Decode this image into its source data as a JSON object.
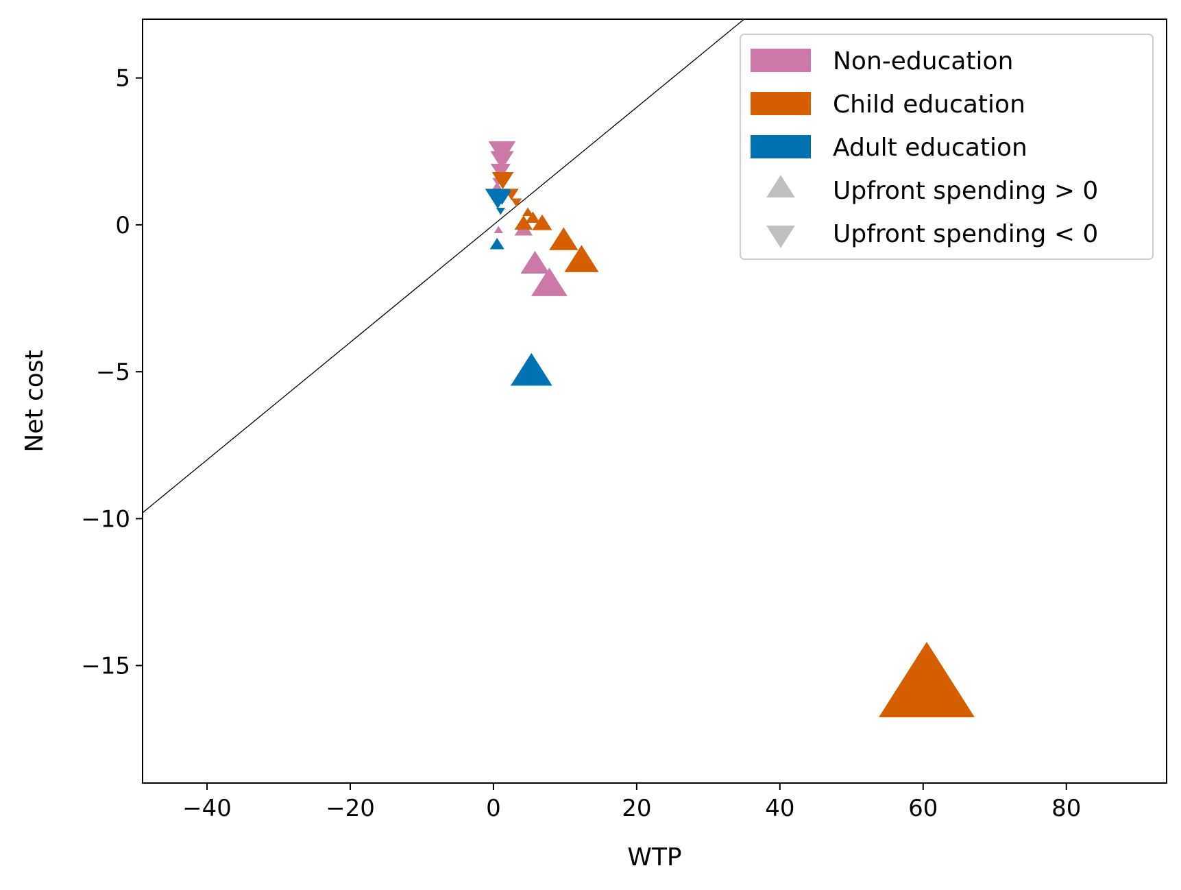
{
  "chart_data": {
    "type": "scatter",
    "xlabel": "WTP",
    "ylabel": "Net cost",
    "xlim": [
      -49,
      94
    ],
    "ylim": [
      -19,
      7
    ],
    "x_ticks": [
      -40,
      -20,
      0,
      20,
      40,
      60,
      80
    ],
    "y_ticks": [
      5,
      0,
      -5,
      -10,
      -15
    ],
    "grid": false,
    "legend_placement": "top-right",
    "reference_line": {
      "slope": 0.2,
      "intercept": 0,
      "color": "#000000"
    },
    "legend": [
      {
        "label": "Non-education",
        "color": "#CC79A7",
        "marker": "patch"
      },
      {
        "label": "Child education",
        "color": "#D55E00",
        "marker": "patch"
      },
      {
        "label": "Adult education",
        "color": "#0072B2",
        "marker": "patch"
      },
      {
        "label": "Upfront spending > 0",
        "color": "#BFBFBF",
        "marker": "triangle-up"
      },
      {
        "label": "Upfront spending < 0",
        "color": "#BFBFBF",
        "marker": "triangle-down"
      }
    ],
    "series": [
      {
        "name": "Non-education",
        "color": "#CC79A7",
        "points": [
          {
            "x": 1.2,
            "y": 2.6,
            "marker": "down",
            "size": 1.5
          },
          {
            "x": 1.2,
            "y": 2.3,
            "marker": "down",
            "size": 1.3
          },
          {
            "x": 1.0,
            "y": 1.9,
            "marker": "down",
            "size": 1.1
          },
          {
            "x": 0.6,
            "y": 1.5,
            "marker": "down",
            "size": 0.6
          },
          {
            "x": 0.5,
            "y": 1.3,
            "marker": "up",
            "size": 0.5
          },
          {
            "x": 0.7,
            "y": -0.2,
            "marker": "up",
            "size": 0.5
          },
          {
            "x": 4.2,
            "y": -0.2,
            "marker": "up",
            "size": 1.0
          },
          {
            "x": 5.8,
            "y": -1.4,
            "marker": "up",
            "size": 1.6
          },
          {
            "x": 7.8,
            "y": -2.1,
            "marker": "up",
            "size": 2.0
          }
        ]
      },
      {
        "name": "Child education",
        "color": "#D55E00",
        "points": [
          {
            "x": 1.3,
            "y": 1.6,
            "marker": "down",
            "size": 1.2
          },
          {
            "x": 2.5,
            "y": 1.1,
            "marker": "down",
            "size": 0.8
          },
          {
            "x": 3.2,
            "y": 0.8,
            "marker": "down",
            "size": 0.6
          },
          {
            "x": 4.8,
            "y": 0.4,
            "marker": "up",
            "size": 0.6
          },
          {
            "x": 4.2,
            "y": 0.0,
            "marker": "up",
            "size": 1.0
          },
          {
            "x": 5.5,
            "y": 0.2,
            "marker": "up",
            "size": 0.8
          },
          {
            "x": 6.8,
            "y": 0.0,
            "marker": "up",
            "size": 1.1
          },
          {
            "x": 9.8,
            "y": -0.6,
            "marker": "up",
            "size": 1.6
          },
          {
            "x": 12.3,
            "y": -1.3,
            "marker": "up",
            "size": 1.9
          },
          {
            "x": 60.5,
            "y": -15.9,
            "marker": "up",
            "size": 5.3
          }
        ]
      },
      {
        "name": "Adult education",
        "color": "#0072B2",
        "points": [
          {
            "x": 0.6,
            "y": 1.0,
            "marker": "down",
            "size": 1.4
          },
          {
            "x": 1.2,
            "y": 1.0,
            "marker": "down",
            "size": 1.0
          },
          {
            "x": 1.0,
            "y": 0.5,
            "marker": "down",
            "size": 0.5
          },
          {
            "x": 0.5,
            "y": -0.7,
            "marker": "up",
            "size": 0.8
          },
          {
            "x": 5.3,
            "y": -5.1,
            "marker": "up",
            "size": 2.3
          }
        ]
      }
    ]
  }
}
